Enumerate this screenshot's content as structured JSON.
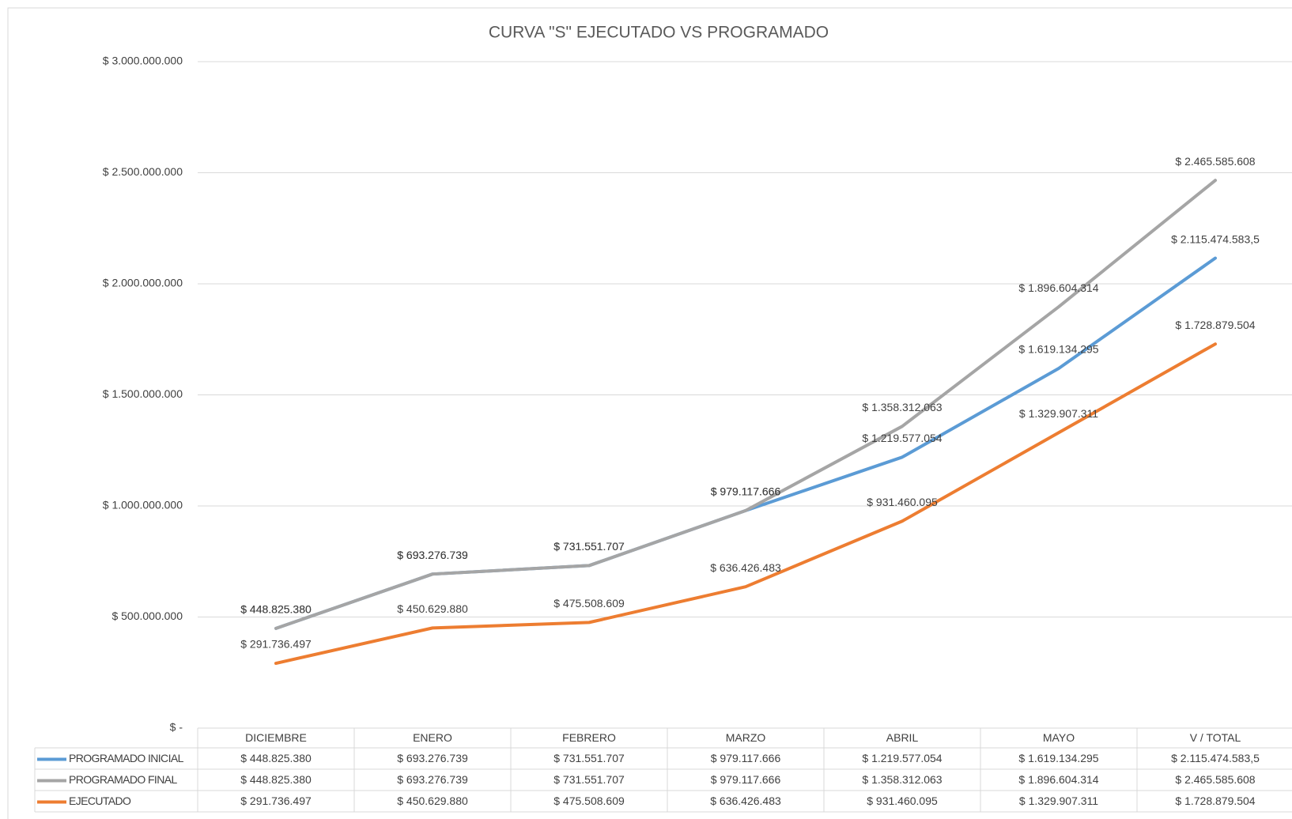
{
  "chart_data": {
    "type": "line",
    "title": "CURVA \"S\" EJECUTADO VS PROGRAMADO",
    "categories": [
      "DICIEMBRE",
      "ENERO",
      "FEBRERO",
      "MARZO",
      "ABRIL",
      "MAYO",
      "V / TOTAL"
    ],
    "series": [
      {
        "name": "PROGRAMADO INICIAL",
        "color": "#5b9bd5",
        "values": [
          448825380,
          693276739,
          731551707,
          979117666,
          1219577054,
          1619134295,
          2115474583.5
        ],
        "value_labels": [
          "$ 448.825.380",
          "$ 693.276.739",
          "$ 731.551.707",
          "$ 979.117.666",
          "$ 1.219.577.054",
          "$ 1.619.134.295",
          "$ 2.115.474.583,5"
        ]
      },
      {
        "name": "PROGRAMADO FINAL",
        "color": "#a5a5a5",
        "values": [
          448825380,
          693276739,
          731551707,
          979117666,
          1358312063,
          1896604314,
          2465585608
        ],
        "value_labels": [
          "$ 448.825.380",
          "$ 693.276.739",
          "$ 731.551.707",
          "$ 979.117.666",
          "$ 1.358.312.063",
          "$ 1.896.604.314",
          "$ 2.465.585.608"
        ]
      },
      {
        "name": "EJECUTADO",
        "color": "#ed7d31",
        "values": [
          291736497,
          450629880,
          475508609,
          636426483,
          931460095,
          1329907311,
          1728879504
        ],
        "value_labels": [
          "$ 291.736.497",
          "$ 450.629.880",
          "$ 475.508.609",
          "$ 636.426.483",
          "$ 931.460.095",
          "$ 1.329.907.311",
          "$ 1.728.879.504"
        ]
      }
    ],
    "ylim": [
      0,
      3000000000
    ],
    "yticks": [
      {
        "value": 0,
        "label": "$ -"
      },
      {
        "value": 500000000,
        "label": "$ 500.000.000"
      },
      {
        "value": 1000000000,
        "label": "$ 1.000.000.000"
      },
      {
        "value": 1500000000,
        "label": "$ 1.500.000.000"
      },
      {
        "value": 2000000000,
        "label": "$ 2.000.000.000"
      },
      {
        "value": 2500000000,
        "label": "$ 2.500.000.000"
      },
      {
        "value": 3000000000,
        "label": "$ 3.000.000.000"
      }
    ],
    "grid": true,
    "legend": "table"
  }
}
